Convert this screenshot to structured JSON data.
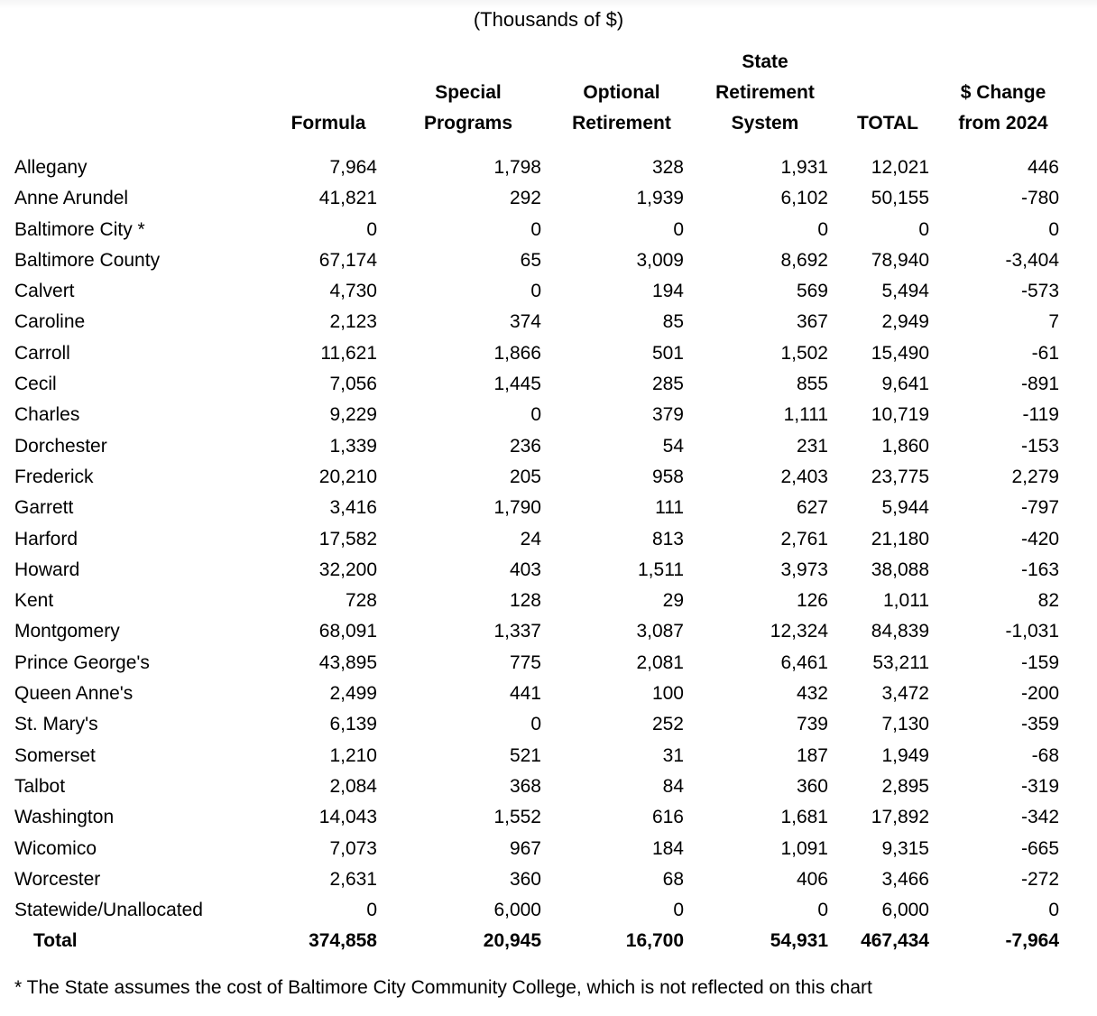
{
  "title": "(Thousands of $)",
  "table": {
    "column_headers": [
      "",
      "Formula",
      "Special\nPrograms",
      "Optional\nRetirement",
      "State\nRetirement\nSystem",
      "TOTAL",
      "$ Change\nfrom 2024"
    ],
    "rows": [
      [
        "Allegany",
        "7,964",
        "1,798",
        "328",
        "1,931",
        "12,021",
        "446"
      ],
      [
        "Anne Arundel",
        "41,821",
        "292",
        "1,939",
        "6,102",
        "50,155",
        "-780"
      ],
      [
        "Baltimore City *",
        "0",
        "0",
        "0",
        "0",
        "0",
        "0"
      ],
      [
        "Baltimore County",
        "67,174",
        "65",
        "3,009",
        "8,692",
        "78,940",
        "-3,404"
      ],
      [
        "Calvert",
        "4,730",
        "0",
        "194",
        "569",
        "5,494",
        "-573"
      ],
      [
        "Caroline",
        "2,123",
        "374",
        "85",
        "367",
        "2,949",
        "7"
      ],
      [
        "Carroll",
        "11,621",
        "1,866",
        "501",
        "1,502",
        "15,490",
        "-61"
      ],
      [
        "Cecil",
        "7,056",
        "1,445",
        "285",
        "855",
        "9,641",
        "-891"
      ],
      [
        "Charles",
        "9,229",
        "0",
        "379",
        "1,111",
        "10,719",
        "-119"
      ],
      [
        "Dorchester",
        "1,339",
        "236",
        "54",
        "231",
        "1,860",
        "-153"
      ],
      [
        "Frederick",
        "20,210",
        "205",
        "958",
        "2,403",
        "23,775",
        "2,279"
      ],
      [
        "Garrett",
        "3,416",
        "1,790",
        "111",
        "627",
        "5,944",
        "-797"
      ],
      [
        "Harford",
        "17,582",
        "24",
        "813",
        "2,761",
        "21,180",
        "-420"
      ],
      [
        "Howard",
        "32,200",
        "403",
        "1,511",
        "3,973",
        "38,088",
        "-163"
      ],
      [
        "Kent",
        "728",
        "128",
        "29",
        "126",
        "1,011",
        "82"
      ],
      [
        "Montgomery",
        "68,091",
        "1,337",
        "3,087",
        "12,324",
        "84,839",
        "-1,031"
      ],
      [
        "Prince George's",
        "43,895",
        "775",
        "2,081",
        "6,461",
        "53,211",
        "-159"
      ],
      [
        "Queen Anne's",
        "2,499",
        "441",
        "100",
        "432",
        "3,472",
        "-200"
      ],
      [
        "St. Mary's",
        "6,139",
        "0",
        "252",
        "739",
        "7,130",
        "-359"
      ],
      [
        "Somerset",
        "1,210",
        "521",
        "31",
        "187",
        "1,949",
        "-68"
      ],
      [
        "Talbot",
        "2,084",
        "368",
        "84",
        "360",
        "2,895",
        "-319"
      ],
      [
        "Washington",
        "14,043",
        "1,552",
        "616",
        "1,681",
        "17,892",
        "-342"
      ],
      [
        "Wicomico",
        "7,073",
        "967",
        "184",
        "1,091",
        "9,315",
        "-665"
      ],
      [
        "Worcester",
        "2,631",
        "360",
        "68",
        "406",
        "3,466",
        "-272"
      ],
      [
        "Statewide/Unallocated",
        "0",
        "6,000",
        "0",
        "0",
        "6,000",
        "0"
      ]
    ],
    "total_row": [
      "Total",
      "374,858",
      "20,945",
      "16,700",
      "54,931",
      "467,434",
      "-7,964"
    ]
  },
  "footnote": "* The State assumes the cost of Baltimore City Community College, which is not reflected on this chart",
  "colors": {
    "text": "#000000",
    "background": "#ffffff"
  }
}
